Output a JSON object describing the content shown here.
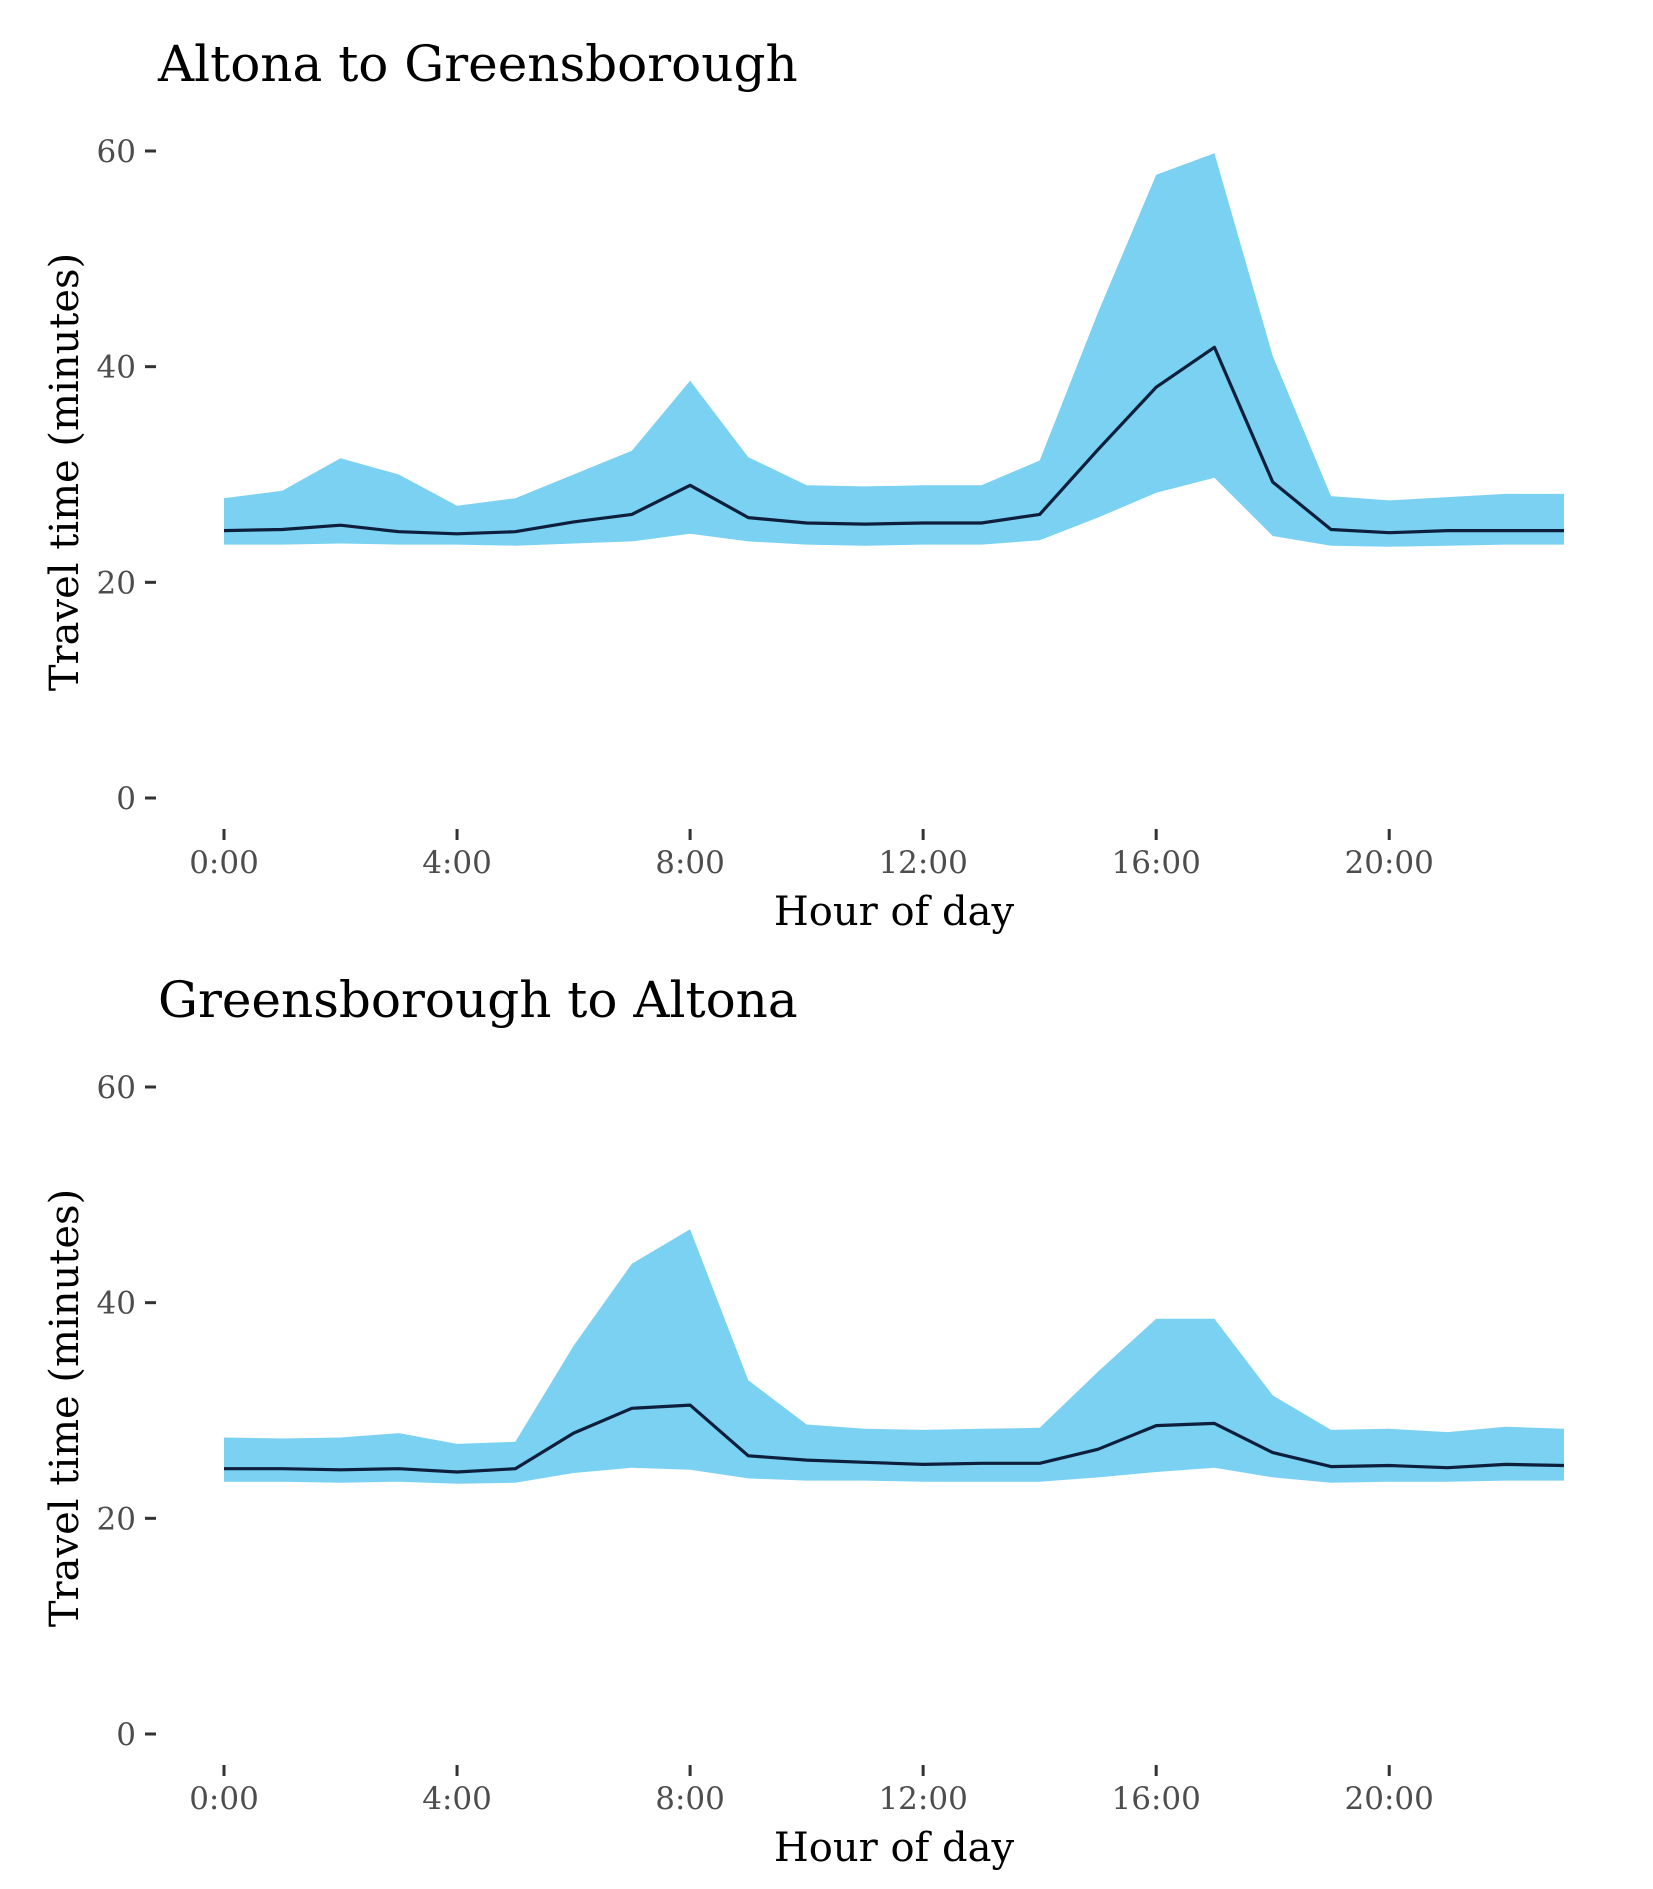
{
  "chart_data": [
    {
      "type": "area",
      "title": "Altona to Greensborough",
      "xlabel": "Hour of day",
      "ylabel": "Travel time (minutes)",
      "xlim": [
        0,
        23
      ],
      "ylim": [
        0,
        60
      ],
      "yticks": [
        0,
        20,
        40,
        60
      ],
      "xticks": [
        "0:00",
        "4:00",
        "8:00",
        "12:00",
        "16:00",
        "20:00"
      ],
      "xtick_values": [
        0,
        4,
        8,
        12,
        16,
        20
      ],
      "grid": false,
      "colors": {
        "band": "#7ad1f2",
        "line": "#0d1f3c",
        "tick_text": "#4d4d4d"
      },
      "x": [
        0,
        1,
        2,
        3,
        4,
        5,
        6,
        7,
        8,
        9,
        10,
        11,
        12,
        13,
        14,
        15,
        16,
        17,
        18,
        19,
        20,
        21,
        22,
        23
      ],
      "series": [
        {
          "values": [
            24.8,
            24.9,
            25.3,
            24.7,
            24.5,
            24.7,
            25.6,
            26.3,
            29.0,
            26.0,
            25.5,
            25.4,
            25.5,
            25.5,
            26.3,
            32.3,
            38.1,
            41.8,
            29.3,
            24.9,
            24.6,
            24.8,
            24.8,
            24.8
          ]
        }
      ],
      "band_upper": [
        27.8,
        28.5,
        31.5,
        30.0,
        27.1,
        27.8,
        30.0,
        32.2,
        38.7,
        31.6,
        29.0,
        28.9,
        29.0,
        29.0,
        31.3,
        45.0,
        57.8,
        59.8,
        41.0,
        28.0,
        27.6,
        27.9,
        28.2,
        28.2
      ],
      "band_lower": [
        23.5,
        23.5,
        23.6,
        23.5,
        23.5,
        23.4,
        23.6,
        23.8,
        24.5,
        23.8,
        23.5,
        23.4,
        23.5,
        23.5,
        23.9,
        26.0,
        28.3,
        29.7,
        24.3,
        23.4,
        23.3,
        23.4,
        23.5,
        23.5
      ]
    },
    {
      "type": "area",
      "title": "Greensborough to Altona",
      "xlabel": "Hour of day",
      "ylabel": "Travel time (minutes)",
      "xlim": [
        0,
        23
      ],
      "ylim": [
        0,
        60
      ],
      "yticks": [
        0,
        20,
        40,
        60
      ],
      "xticks": [
        "0:00",
        "4:00",
        "8:00",
        "12:00",
        "16:00",
        "20:00"
      ],
      "xtick_values": [
        0,
        4,
        8,
        12,
        16,
        20
      ],
      "grid": false,
      "colors": {
        "band": "#7ad1f2",
        "line": "#0d1f3c",
        "tick_text": "#4d4d4d"
      },
      "x": [
        0,
        1,
        2,
        3,
        4,
        5,
        6,
        7,
        8,
        9,
        10,
        11,
        12,
        13,
        14,
        15,
        16,
        17,
        18,
        19,
        20,
        21,
        22,
        23
      ],
      "series": [
        {
          "values": [
            24.6,
            24.6,
            24.5,
            24.6,
            24.3,
            24.6,
            27.9,
            30.2,
            30.5,
            25.8,
            25.4,
            25.2,
            25.0,
            25.1,
            25.1,
            26.4,
            28.6,
            28.8,
            26.1,
            24.8,
            24.9,
            24.7,
            25.0,
            24.9
          ]
        }
      ],
      "band_upper": [
        27.5,
        27.4,
        27.5,
        27.9,
        26.9,
        27.1,
        36.0,
        43.6,
        46.8,
        32.8,
        28.7,
        28.3,
        28.2,
        28.3,
        28.4,
        33.6,
        38.5,
        38.5,
        31.4,
        28.2,
        28.3,
        28.0,
        28.5,
        28.3
      ],
      "band_lower": [
        23.4,
        23.4,
        23.3,
        23.4,
        23.2,
        23.3,
        24.2,
        24.7,
        24.5,
        23.7,
        23.5,
        23.5,
        23.4,
        23.4,
        23.4,
        23.8,
        24.3,
        24.7,
        23.8,
        23.3,
        23.4,
        23.4,
        23.5,
        23.5
      ]
    }
  ]
}
